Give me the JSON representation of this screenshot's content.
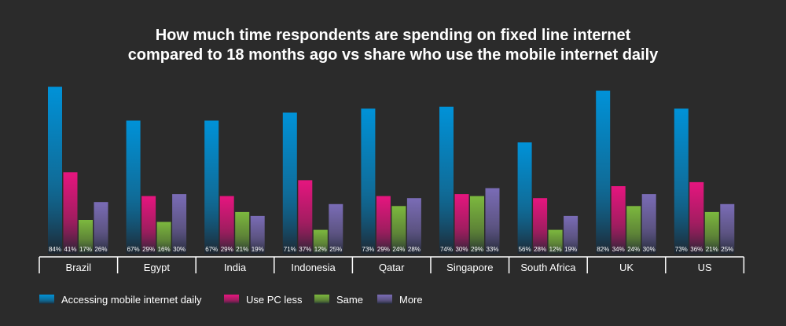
{
  "chart_data": {
    "type": "bar",
    "title_line1": "How much time respondents are spending on fixed line internet",
    "title_line2": "compared to 18 months ago vs share who use the mobile internet daily",
    "categories": [
      "Brazil",
      "Egypt",
      "India",
      "Indonesia",
      "Qatar",
      "Singapore",
      "South Africa",
      "UK",
      "US"
    ],
    "series": [
      {
        "name": "Accessing mobile internet daily",
        "color": "#0092d8",
        "values": [
          84,
          67,
          67,
          71,
          73,
          74,
          56,
          82,
          73
        ]
      },
      {
        "name": "Use PC less",
        "color": "#e6157f",
        "values": [
          41,
          29,
          29,
          37,
          29,
          30,
          28,
          34,
          36
        ]
      },
      {
        "name": "Same",
        "color": "#7cb83e",
        "values": [
          17,
          16,
          21,
          12,
          24,
          29,
          12,
          24,
          21
        ]
      },
      {
        "name": "More",
        "color": "#7a6cb6",
        "values": [
          26,
          30,
          19,
          25,
          28,
          33,
          19,
          30,
          25
        ]
      }
    ],
    "value_suffix": "%",
    "ylim": [
      0,
      100
    ],
    "xlabel": "",
    "ylabel": ""
  }
}
